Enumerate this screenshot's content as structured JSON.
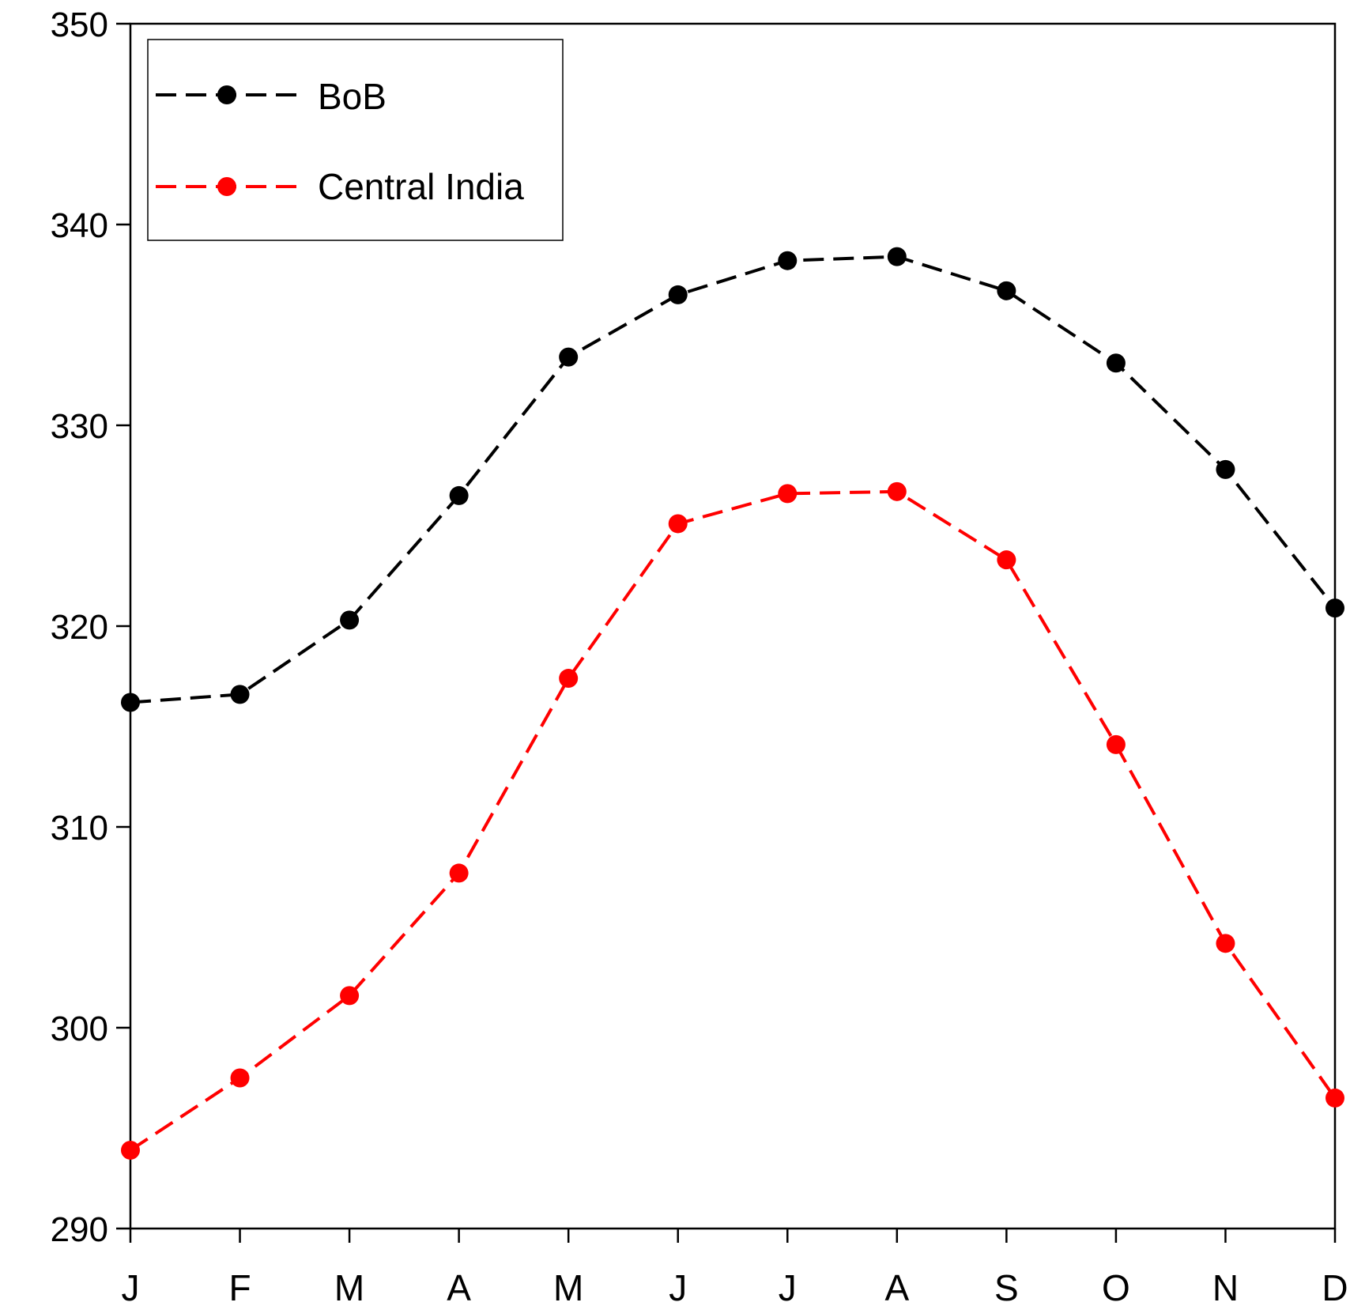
{
  "chart_data": {
    "type": "line",
    "categories": [
      "J",
      "F",
      "M",
      "A",
      "M",
      "J",
      "J",
      "A",
      "S",
      "O",
      "N",
      "D"
    ],
    "ylim": [
      290,
      350
    ],
    "yticks": [
      290,
      300,
      310,
      320,
      330,
      340,
      350
    ],
    "grid": false,
    "legend_position": "top-left",
    "series": [
      {
        "name": "BoB",
        "color": "#000000",
        "values": [
          316.2,
          316.6,
          320.3,
          326.5,
          333.4,
          336.5,
          338.2,
          338.4,
          336.7,
          333.1,
          327.8,
          320.9
        ]
      },
      {
        "name": "Central India",
        "color": "#ff0000",
        "values": [
          293.9,
          297.5,
          301.6,
          307.7,
          317.4,
          325.1,
          326.6,
          326.7,
          323.3,
          314.1,
          304.2,
          296.5
        ]
      }
    ]
  }
}
